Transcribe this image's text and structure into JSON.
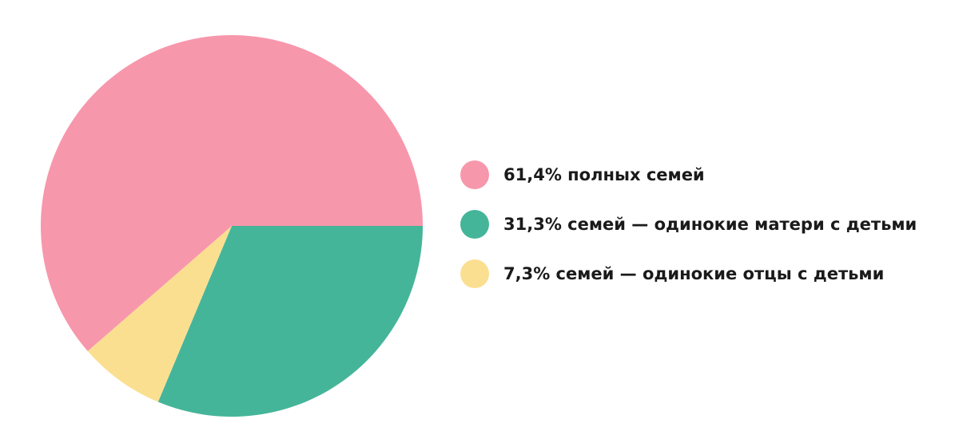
{
  "chart_data": {
    "type": "pie",
    "title": "",
    "legend_position": "right",
    "slices": [
      {
        "label": "61,4% полных семей",
        "value": 61.4,
        "color": "#f797ac"
      },
      {
        "label": "31,3% семей — одинокие матери с детьми",
        "value": 31.3,
        "color": "#45b599"
      },
      {
        "label": "7,3% семей — одинокие отцы с детьми",
        "value": 7.3,
        "color": "#fbdf91"
      }
    ]
  }
}
